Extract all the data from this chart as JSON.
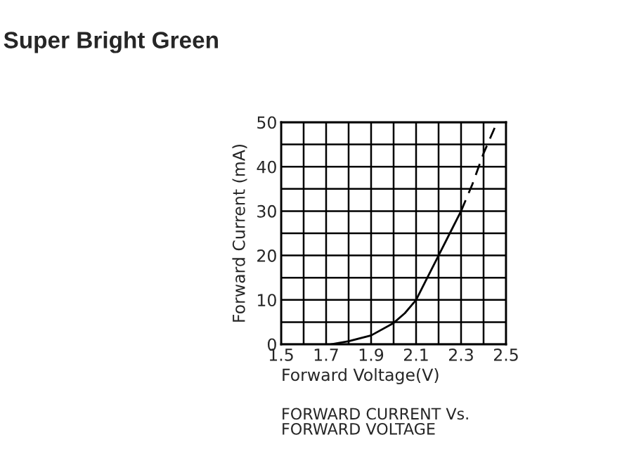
{
  "chart_data": {
    "type": "line",
    "title": "Super Bright Green",
    "xlabel": "Forward Voltage(V)",
    "ylabel": "Forward Current (mA)",
    "annotations": [
      "FORWARD CURRENT Vs.\nFORWARD VOLTAGE"
    ],
    "series": [
      {
        "color": "#000000",
        "line_style": "solid",
        "x": [
          1.72,
          1.8,
          1.9,
          2.0,
          2.05,
          2.1,
          2.15,
          2.2,
          2.25,
          2.3
        ],
        "values": [
          0,
          0.7,
          2,
          4.8,
          7,
          10,
          15,
          20,
          25,
          30
        ]
      },
      {
        "color": "#000000",
        "line_style": "dashed",
        "x": [
          2.3,
          2.35,
          2.4,
          2.46
        ],
        "values": [
          30,
          36,
          43,
          50
        ]
      }
    ],
    "xlim": [
      1.5,
      2.5
    ],
    "xticks": [
      {
        "value": 1.5,
        "label": "1.5"
      },
      {
        "value": 1.6,
        "label": null
      },
      {
        "value": 1.7,
        "label": "1.7"
      },
      {
        "value": 1.8,
        "label": null
      },
      {
        "value": 1.9,
        "label": "1.9"
      },
      {
        "value": 2.0,
        "label": null
      },
      {
        "value": 2.1,
        "label": "2.1"
      },
      {
        "value": 2.2,
        "label": null
      },
      {
        "value": 2.3,
        "label": "2.3"
      },
      {
        "value": 2.4,
        "label": null
      },
      {
        "value": 2.5,
        "label": "2.5"
      }
    ],
    "ylim": [
      0,
      50
    ],
    "yticks": [
      0,
      {
        "value": 5,
        "label": null
      },
      10,
      {
        "value": 15,
        "label": null
      },
      20,
      {
        "value": 25,
        "label": null
      },
      30,
      {
        "value": 35,
        "label": null
      },
      40,
      {
        "value": 45,
        "label": null
      },
      50
    ],
    "grid": true,
    "marker": "none"
  }
}
